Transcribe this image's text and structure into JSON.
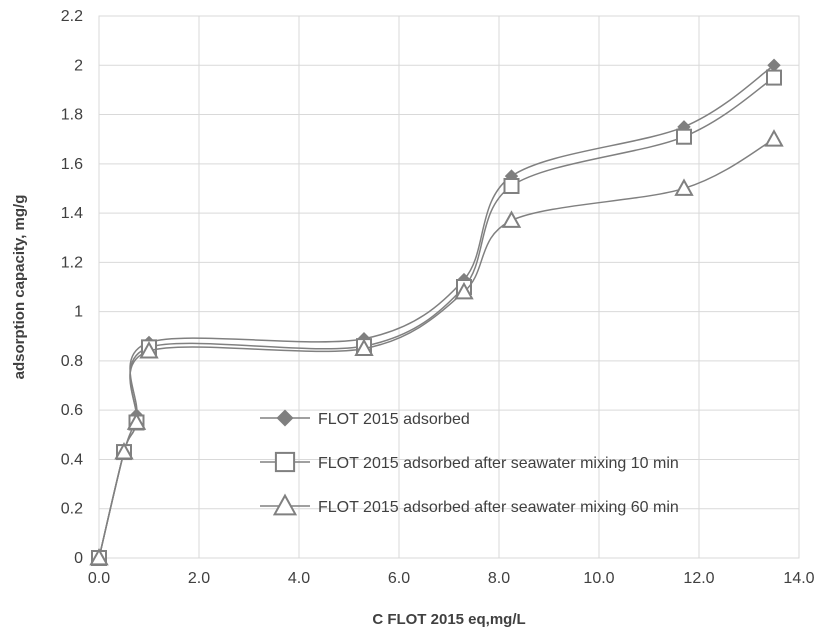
{
  "chart_data": {
    "type": "scatter",
    "xlabel": "C FLOT 2015 eq,mg/L",
    "ylabel": "adsorption capacity, mg/g",
    "xlim": [
      0,
      14
    ],
    "ylim": [
      0,
      2.2
    ],
    "x_ticks": [
      "0.0",
      "2.0",
      "4.0",
      "6.0",
      "8.0",
      "10.0",
      "12.0",
      "14.0"
    ],
    "y_ticks": [
      "0",
      "0.2",
      "0.4",
      "0.6",
      "0.8",
      "1",
      "1.2",
      "1.4",
      "1.6",
      "1.8",
      "2",
      "2.2"
    ],
    "grid": true,
    "smooth_lines": true,
    "legend_position": "bottom-right inside plot",
    "series": [
      {
        "name": "FLOT 2015 adsorbed",
        "marker": "diamond",
        "color": "#808080",
        "x": [
          0,
          0.5,
          0.75,
          1.0,
          5.3,
          7.3,
          8.25,
          11.7,
          13.5
        ],
        "y": [
          0,
          0.43,
          0.58,
          0.875,
          0.89,
          1.13,
          1.55,
          1.75,
          2.0
        ]
      },
      {
        "name": "FLOT 2015 adsorbed after seawater mixing 10 min",
        "marker": "square",
        "color": "#808080",
        "x": [
          0,
          0.5,
          0.75,
          1.0,
          5.3,
          7.3,
          8.25,
          11.7,
          13.5
        ],
        "y": [
          0,
          0.43,
          0.55,
          0.855,
          0.86,
          1.1,
          1.51,
          1.71,
          1.95
        ]
      },
      {
        "name": "FLOT 2015 adsorbed after seawater mixing 60 min",
        "marker": "triangle",
        "color": "#808080",
        "x": [
          0,
          0.5,
          0.75,
          1.0,
          5.3,
          7.3,
          8.25,
          11.7,
          13.5
        ],
        "y": [
          0,
          0.43,
          0.55,
          0.84,
          0.85,
          1.08,
          1.37,
          1.5,
          1.7
        ]
      }
    ]
  }
}
